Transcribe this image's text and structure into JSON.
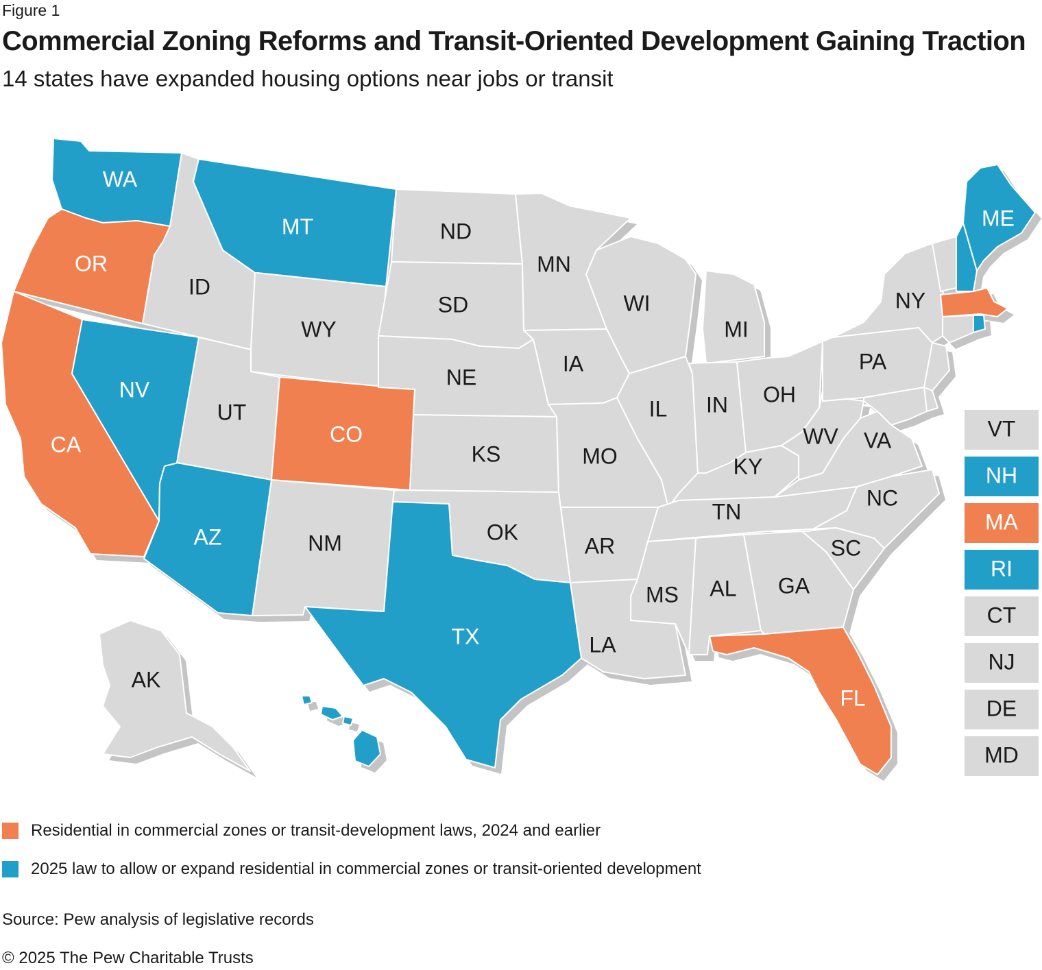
{
  "header": {
    "figure_label": "Figure 1",
    "title": "Commercial Zoning Reforms and Transit-Oriented Development Gaining Traction",
    "subtitle": "14 states have expanded housing options near jobs or transit"
  },
  "colors": {
    "orange": "#f08050",
    "blue": "#229fc8",
    "gray": "#d9d9d9",
    "shadow": "#c4c4c4",
    "border": "#ffffff",
    "text_dark": "#1a1a1a",
    "text_light": "#ffffff"
  },
  "legend": {
    "items": [
      {
        "label": "Residential in commercial zones or transit-development laws, 2024 and earlier",
        "color": "orange"
      },
      {
        "label": "2025 law to allow or expand residential in commercial zones or transit-oriented development",
        "color": "blue"
      }
    ]
  },
  "states": [
    {
      "abbr": "WA",
      "status": "blue"
    },
    {
      "abbr": "OR",
      "status": "orange"
    },
    {
      "abbr": "CA",
      "status": "orange"
    },
    {
      "abbr": "NV",
      "status": "blue"
    },
    {
      "abbr": "ID",
      "status": "gray"
    },
    {
      "abbr": "MT",
      "status": "blue"
    },
    {
      "abbr": "WY",
      "status": "gray"
    },
    {
      "abbr": "UT",
      "status": "gray"
    },
    {
      "abbr": "AZ",
      "status": "blue"
    },
    {
      "abbr": "CO",
      "status": "orange"
    },
    {
      "abbr": "NM",
      "status": "gray"
    },
    {
      "abbr": "ND",
      "status": "gray"
    },
    {
      "abbr": "SD",
      "status": "gray"
    },
    {
      "abbr": "NE",
      "status": "gray"
    },
    {
      "abbr": "KS",
      "status": "gray"
    },
    {
      "abbr": "OK",
      "status": "gray"
    },
    {
      "abbr": "TX",
      "status": "blue"
    },
    {
      "abbr": "MN",
      "status": "gray"
    },
    {
      "abbr": "IA",
      "status": "gray"
    },
    {
      "abbr": "MO",
      "status": "gray"
    },
    {
      "abbr": "AR",
      "status": "gray"
    },
    {
      "abbr": "LA",
      "status": "gray"
    },
    {
      "abbr": "WI",
      "status": "gray"
    },
    {
      "abbr": "IL",
      "status": "gray"
    },
    {
      "abbr": "MI",
      "status": "gray"
    },
    {
      "abbr": "IN",
      "status": "gray"
    },
    {
      "abbr": "OH",
      "status": "gray"
    },
    {
      "abbr": "KY",
      "status": "gray"
    },
    {
      "abbr": "TN",
      "status": "gray"
    },
    {
      "abbr": "MS",
      "status": "gray"
    },
    {
      "abbr": "AL",
      "status": "gray"
    },
    {
      "abbr": "GA",
      "status": "gray"
    },
    {
      "abbr": "FL",
      "status": "orange"
    },
    {
      "abbr": "SC",
      "status": "gray"
    },
    {
      "abbr": "NC",
      "status": "gray"
    },
    {
      "abbr": "VA",
      "status": "gray"
    },
    {
      "abbr": "WV",
      "status": "gray"
    },
    {
      "abbr": "PA",
      "status": "gray"
    },
    {
      "abbr": "NY",
      "status": "gray"
    },
    {
      "abbr": "ME",
      "status": "blue"
    },
    {
      "abbr": "AK",
      "status": "gray"
    },
    {
      "abbr": "HI",
      "status": "blue"
    }
  ],
  "small_states": [
    {
      "abbr": "VT",
      "status": "gray"
    },
    {
      "abbr": "NH",
      "status": "blue"
    },
    {
      "abbr": "MA",
      "status": "orange"
    },
    {
      "abbr": "RI",
      "status": "blue"
    },
    {
      "abbr": "CT",
      "status": "gray"
    },
    {
      "abbr": "NJ",
      "status": "gray"
    },
    {
      "abbr": "DE",
      "status": "gray"
    },
    {
      "abbr": "MD",
      "status": "gray"
    }
  ],
  "footer": {
    "source": "Source: Pew analysis of legislative records",
    "copyright": "© 2025 The Pew Charitable Trusts"
  }
}
